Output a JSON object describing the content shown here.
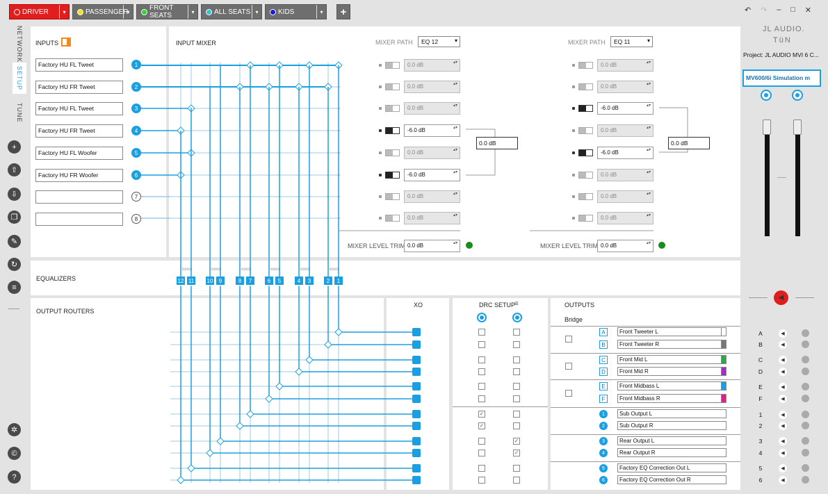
{
  "presets": [
    {
      "label": "DRIVER",
      "bg": "#e21d1d",
      "dot": "#e21d1d",
      "active": true
    },
    {
      "label": "PASSENGER",
      "bg": "#6e6e6e",
      "dot": "#f2e21a",
      "active": false
    },
    {
      "label": "FRONT SEATS",
      "bg": "#6e6e6e",
      "dot": "#2fd42f",
      "active": false
    },
    {
      "label": "ALL SEATS",
      "bg": "#6e6e6e",
      "dot": "#2bc6d8",
      "active": false
    },
    {
      "label": "KIDS",
      "bg": "#6e6e6e",
      "dot": "#1a1ad8",
      "active": false
    }
  ],
  "add_icon": "plus-icon",
  "side_tabs": [
    "NETWORK",
    "SETUP",
    "TUNE"
  ],
  "side_icons": [
    "add-icon",
    "upload-icon",
    "download-icon",
    "copy-icon",
    "wrench-icon",
    "refresh-icon",
    "list-icon"
  ],
  "bottom_icons": [
    "settings-icon",
    "copyright-icon",
    "help-icon"
  ],
  "inputs": {
    "title": "INPUTS",
    "rows": [
      {
        "name": "Factory HU FL Tweet",
        "num": "1",
        "active": true
      },
      {
        "name": "Factory HU FR Tweet",
        "num": "2",
        "active": true
      },
      {
        "name": "Factory HU FL Tweet",
        "num": "3",
        "active": true
      },
      {
        "name": "Factory HU FR Tweet",
        "num": "4",
        "active": true
      },
      {
        "name": "Factory HU FL Woofer",
        "num": "5",
        "active": true
      },
      {
        "name": "Factory HU FR Woofer",
        "num": "6",
        "active": true
      },
      {
        "name": "",
        "num": "7",
        "active": false
      },
      {
        "name": "",
        "num": "8",
        "active": false
      }
    ]
  },
  "input_mixer": {
    "title": "INPUT MIXER"
  },
  "mixer_paths": [
    {
      "label": "MIXER PATH",
      "eq": "EQ 12",
      "sum": "0.0 dB",
      "trim_label": "MIXER LEVEL TRIM",
      "trim": "0.0 dB",
      "gains": [
        {
          "v": "0.0 dB",
          "on": false
        },
        {
          "v": "0.0 dB",
          "on": false
        },
        {
          "v": "0.0 dB",
          "on": false
        },
        {
          "v": "-6.0 dB",
          "on": true
        },
        {
          "v": "0.0 dB",
          "on": false
        },
        {
          "v": "-6.0 dB",
          "on": true
        },
        {
          "v": "0.0 dB",
          "on": false
        },
        {
          "v": "0.0 dB",
          "on": false
        }
      ]
    },
    {
      "label": "MIXER PATH",
      "eq": "EQ 11",
      "sum": "0.0 dB",
      "trim_label": "MIXER LEVEL TRIM",
      "trim": "0.0 dB",
      "gains": [
        {
          "v": "0.0 dB",
          "on": false
        },
        {
          "v": "0.0 dB",
          "on": false
        },
        {
          "v": "-6.0 dB",
          "on": true
        },
        {
          "v": "0.0 dB",
          "on": false
        },
        {
          "v": "-6.0 dB",
          "on": true
        },
        {
          "v": "0.0 dB",
          "on": false
        },
        {
          "v": "0.0 dB",
          "on": false
        },
        {
          "v": "0.0 dB",
          "on": false
        }
      ]
    }
  ],
  "equalizers": {
    "title": "EQUALIZERS",
    "labels": [
      "12",
      "11",
      "10",
      "9",
      "8",
      "7",
      "6",
      "5",
      "4",
      "3",
      "2",
      "1"
    ]
  },
  "output_routers": {
    "title": "OUTPUT ROUTERS"
  },
  "xo": {
    "title": "XO"
  },
  "drc": {
    "title": "DRC SETUP",
    "checks": [
      [
        false,
        false
      ],
      [
        false,
        false
      ],
      [
        false,
        false
      ],
      [
        false,
        false
      ],
      [
        false,
        false
      ],
      [
        false,
        false
      ],
      [
        true,
        false
      ],
      [
        true,
        false
      ],
      [
        false,
        true
      ],
      [
        false,
        true
      ],
      [
        false,
        false
      ],
      [
        false,
        false
      ]
    ]
  },
  "outputs": {
    "title": "OUTPUTS",
    "bridge": "Bridge",
    "rows": [
      {
        "id": "A",
        "name": "Front Tweeter L",
        "color": "#ffffff"
      },
      {
        "id": "B",
        "name": "Front Tweeter R",
        "color": "#777777"
      },
      {
        "id": "C",
        "name": "Front Mid L",
        "color": "#2ea84a"
      },
      {
        "id": "D",
        "name": "Front Mid R",
        "color": "#a030c0"
      },
      {
        "id": "E",
        "name": "Front Midbass L",
        "color": "#1aa0e2"
      },
      {
        "id": "F",
        "name": "Front Midbass R",
        "color": "#e0208a"
      },
      {
        "id": "1",
        "name": "Sub Output L",
        "color": ""
      },
      {
        "id": "2",
        "name": "Sub Output R",
        "color": ""
      },
      {
        "id": "3",
        "name": "Rear Output L",
        "color": ""
      },
      {
        "id": "4",
        "name": "Rear Output R",
        "color": ""
      },
      {
        "id": "5",
        "name": "Factory EQ Correction Out L",
        "color": ""
      },
      {
        "id": "6",
        "name": "Factory EQ Correction Out R",
        "color": ""
      }
    ]
  },
  "right_panel": {
    "brand": "JL AUDIO.",
    "brand2": "TüN",
    "project": "Project: JL AUDIO MVI 6 C...",
    "device": "MV600/6i Simulation m",
    "labels": [
      "A",
      "B",
      "C",
      "D",
      "E",
      "F",
      "1",
      "2",
      "3",
      "4",
      "5",
      "6"
    ]
  },
  "colors": {
    "accent": "#1aa0e2",
    "red": "#e21d1d",
    "green": "#1a8c1a"
  }
}
